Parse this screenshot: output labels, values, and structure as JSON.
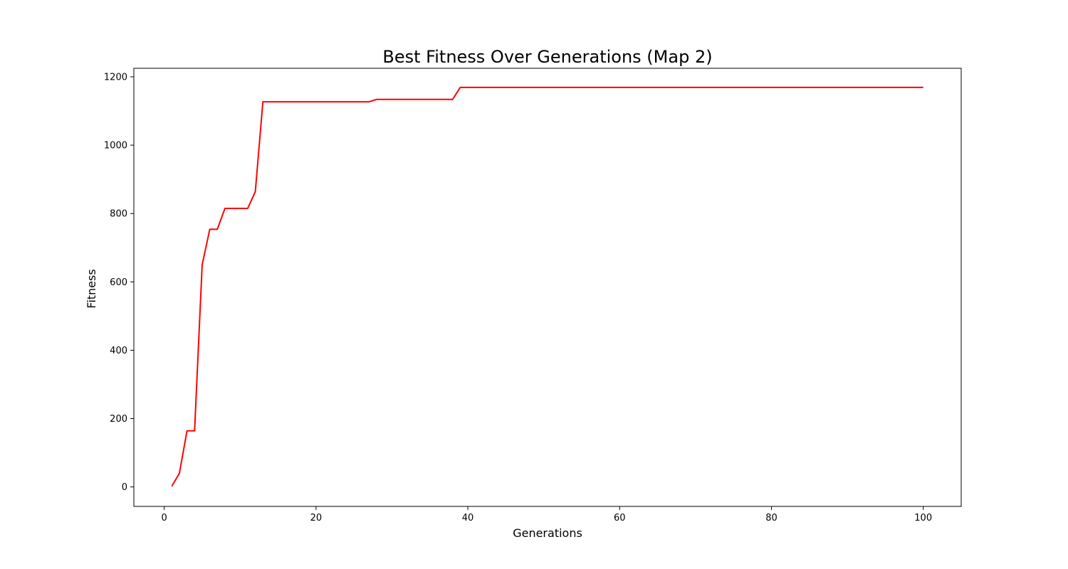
{
  "chart_data": {
    "type": "line",
    "title": "Best Fitness Over Generations (Map 2)",
    "xlabel": "Generations",
    "ylabel": "Fitness",
    "xlim": [
      -4,
      105
    ],
    "ylim": [
      -57,
      1225
    ],
    "xticks": [
      0,
      20,
      40,
      60,
      80,
      100
    ],
    "yticks": [
      0,
      200,
      400,
      600,
      800,
      1000,
      1200
    ],
    "grid": false,
    "legend": "none",
    "series": [
      {
        "color": "#ff0000",
        "x": [
          1,
          2,
          3,
          4,
          5,
          6,
          7,
          8,
          9,
          10,
          11,
          12,
          13,
          14,
          15,
          16,
          17,
          18,
          19,
          20,
          21,
          22,
          23,
          24,
          25,
          26,
          27,
          28,
          29,
          30,
          31,
          32,
          33,
          34,
          35,
          36,
          37,
          38,
          39,
          40,
          41,
          42,
          43,
          44,
          45,
          46,
          47,
          48,
          49,
          50,
          51,
          52,
          53,
          54,
          55,
          56,
          57,
          58,
          59,
          60,
          61,
          62,
          63,
          64,
          65,
          66,
          67,
          68,
          69,
          70,
          71,
          72,
          73,
          74,
          75,
          76,
          77,
          78,
          79,
          80,
          81,
          82,
          83,
          84,
          85,
          86,
          87,
          88,
          89,
          90,
          91,
          92,
          93,
          94,
          95,
          96,
          97,
          98,
          99,
          100
        ],
        "y": [
          2,
          40,
          164,
          164,
          650,
          754,
          754,
          815,
          815,
          815,
          815,
          864,
          1127,
          1127,
          1127,
          1127,
          1127,
          1127,
          1127,
          1127,
          1127,
          1127,
          1127,
          1127,
          1127,
          1127,
          1127,
          1134,
          1134,
          1134,
          1134,
          1134,
          1134,
          1134,
          1134,
          1134,
          1134,
          1134,
          1169,
          1169,
          1169,
          1169,
          1169,
          1169,
          1169,
          1169,
          1169,
          1169,
          1169,
          1169,
          1169,
          1169,
          1169,
          1169,
          1169,
          1169,
          1169,
          1169,
          1169,
          1169,
          1169,
          1169,
          1169,
          1169,
          1169,
          1169,
          1169,
          1169,
          1169,
          1169,
          1169,
          1169,
          1169,
          1169,
          1169,
          1169,
          1169,
          1169,
          1169,
          1169,
          1169,
          1169,
          1169,
          1169,
          1169,
          1169,
          1169,
          1169,
          1169,
          1169,
          1169,
          1169,
          1169,
          1169,
          1169,
          1169,
          1169,
          1169,
          1169,
          1169
        ]
      }
    ]
  }
}
